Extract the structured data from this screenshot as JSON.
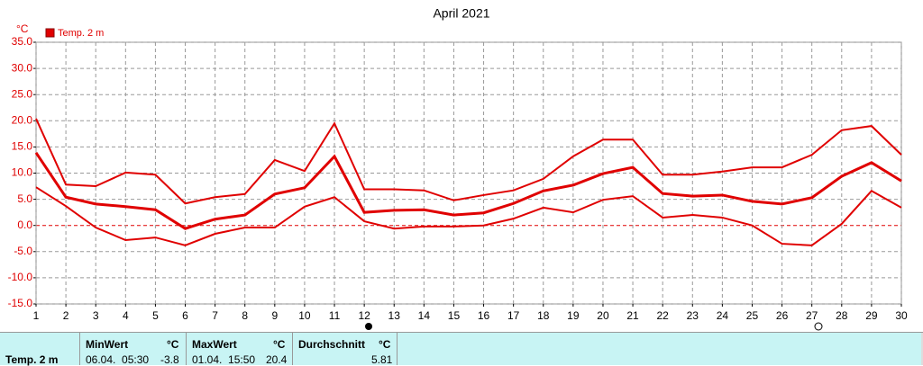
{
  "chart_data": {
    "type": "line",
    "title": "April 2021",
    "y_unit": "°C",
    "legend": "Temp. 2 m",
    "x": [
      1,
      2,
      3,
      4,
      5,
      6,
      7,
      8,
      9,
      10,
      11,
      12,
      13,
      14,
      15,
      16,
      17,
      18,
      19,
      20,
      21,
      22,
      23,
      24,
      25,
      26,
      27,
      28,
      29,
      30
    ],
    "xlim": [
      1,
      30
    ],
    "xticks": [
      1,
      2,
      3,
      4,
      5,
      6,
      7,
      8,
      9,
      10,
      11,
      12,
      13,
      14,
      15,
      16,
      17,
      18,
      19,
      20,
      21,
      22,
      23,
      24,
      25,
      26,
      27,
      28,
      29,
      30
    ],
    "ylim": [
      -15,
      35
    ],
    "yticks": [
      {
        "value": -15,
        "label": "-15.0"
      },
      {
        "value": -10,
        "label": "-10.0"
      },
      {
        "value": -5,
        "label": "-5.0"
      },
      {
        "value": 0,
        "label": "0.0"
      },
      {
        "value": 5,
        "label": "5.0"
      },
      {
        "value": 10,
        "label": "10.0"
      },
      {
        "value": 15,
        "label": "15.0"
      },
      {
        "value": 20,
        "label": "20.0"
      },
      {
        "value": 25,
        "label": "25.0"
      },
      {
        "value": 30,
        "label": "30.0"
      },
      {
        "value": 35,
        "label": "35.0"
      }
    ],
    "grid": true,
    "series": [
      {
        "color": "#e00000",
        "width": 2,
        "values": [
          20.4,
          7.8,
          7.5,
          10.1,
          9.7,
          4.2,
          5.4,
          6.0,
          12.5,
          10.4,
          19.5,
          6.9,
          6.9,
          6.7,
          4.8,
          5.8,
          6.7,
          8.9,
          13.2,
          16.4,
          16.4,
          9.7,
          9.7,
          10.3,
          11.1,
          11.1,
          13.5,
          18.2,
          19.0,
          13.5
        ]
      },
      {
        "color": "#e00000",
        "width": 3,
        "values": [
          13.9,
          5.4,
          4.1,
          3.6,
          3.0,
          -0.6,
          1.2,
          2.0,
          6.0,
          7.2,
          13.2,
          2.5,
          2.9,
          3.0,
          2.0,
          2.4,
          4.2,
          6.6,
          7.7,
          9.9,
          11.1,
          6.1,
          5.6,
          5.8,
          4.6,
          4.1,
          5.3,
          9.4,
          12.0,
          8.5
        ]
      },
      {
        "color": "#e00000",
        "width": 2,
        "values": [
          7.3,
          3.7,
          -0.4,
          -2.8,
          -2.3,
          -3.8,
          -1.6,
          -0.4,
          -0.4,
          3.6,
          5.4,
          0.8,
          -0.6,
          -0.2,
          -0.2,
          0.0,
          1.3,
          3.4,
          2.5,
          4.9,
          5.6,
          1.5,
          2.0,
          1.5,
          0.0,
          -3.5,
          -3.8,
          0.3,
          6.6,
          3.4
        ]
      }
    ]
  },
  "table": {
    "label": "Temp. 2 m",
    "min": {
      "title": "MinWert",
      "unit": "°C",
      "time": "06.04.  05:30",
      "value": -3.8
    },
    "max": {
      "title": "MaxWert",
      "unit": "°C",
      "time": "01.04.  15:50",
      "value": 20.4
    },
    "avg": {
      "title": "Durchschnitt",
      "unit": "°C",
      "value": 5.81
    }
  }
}
